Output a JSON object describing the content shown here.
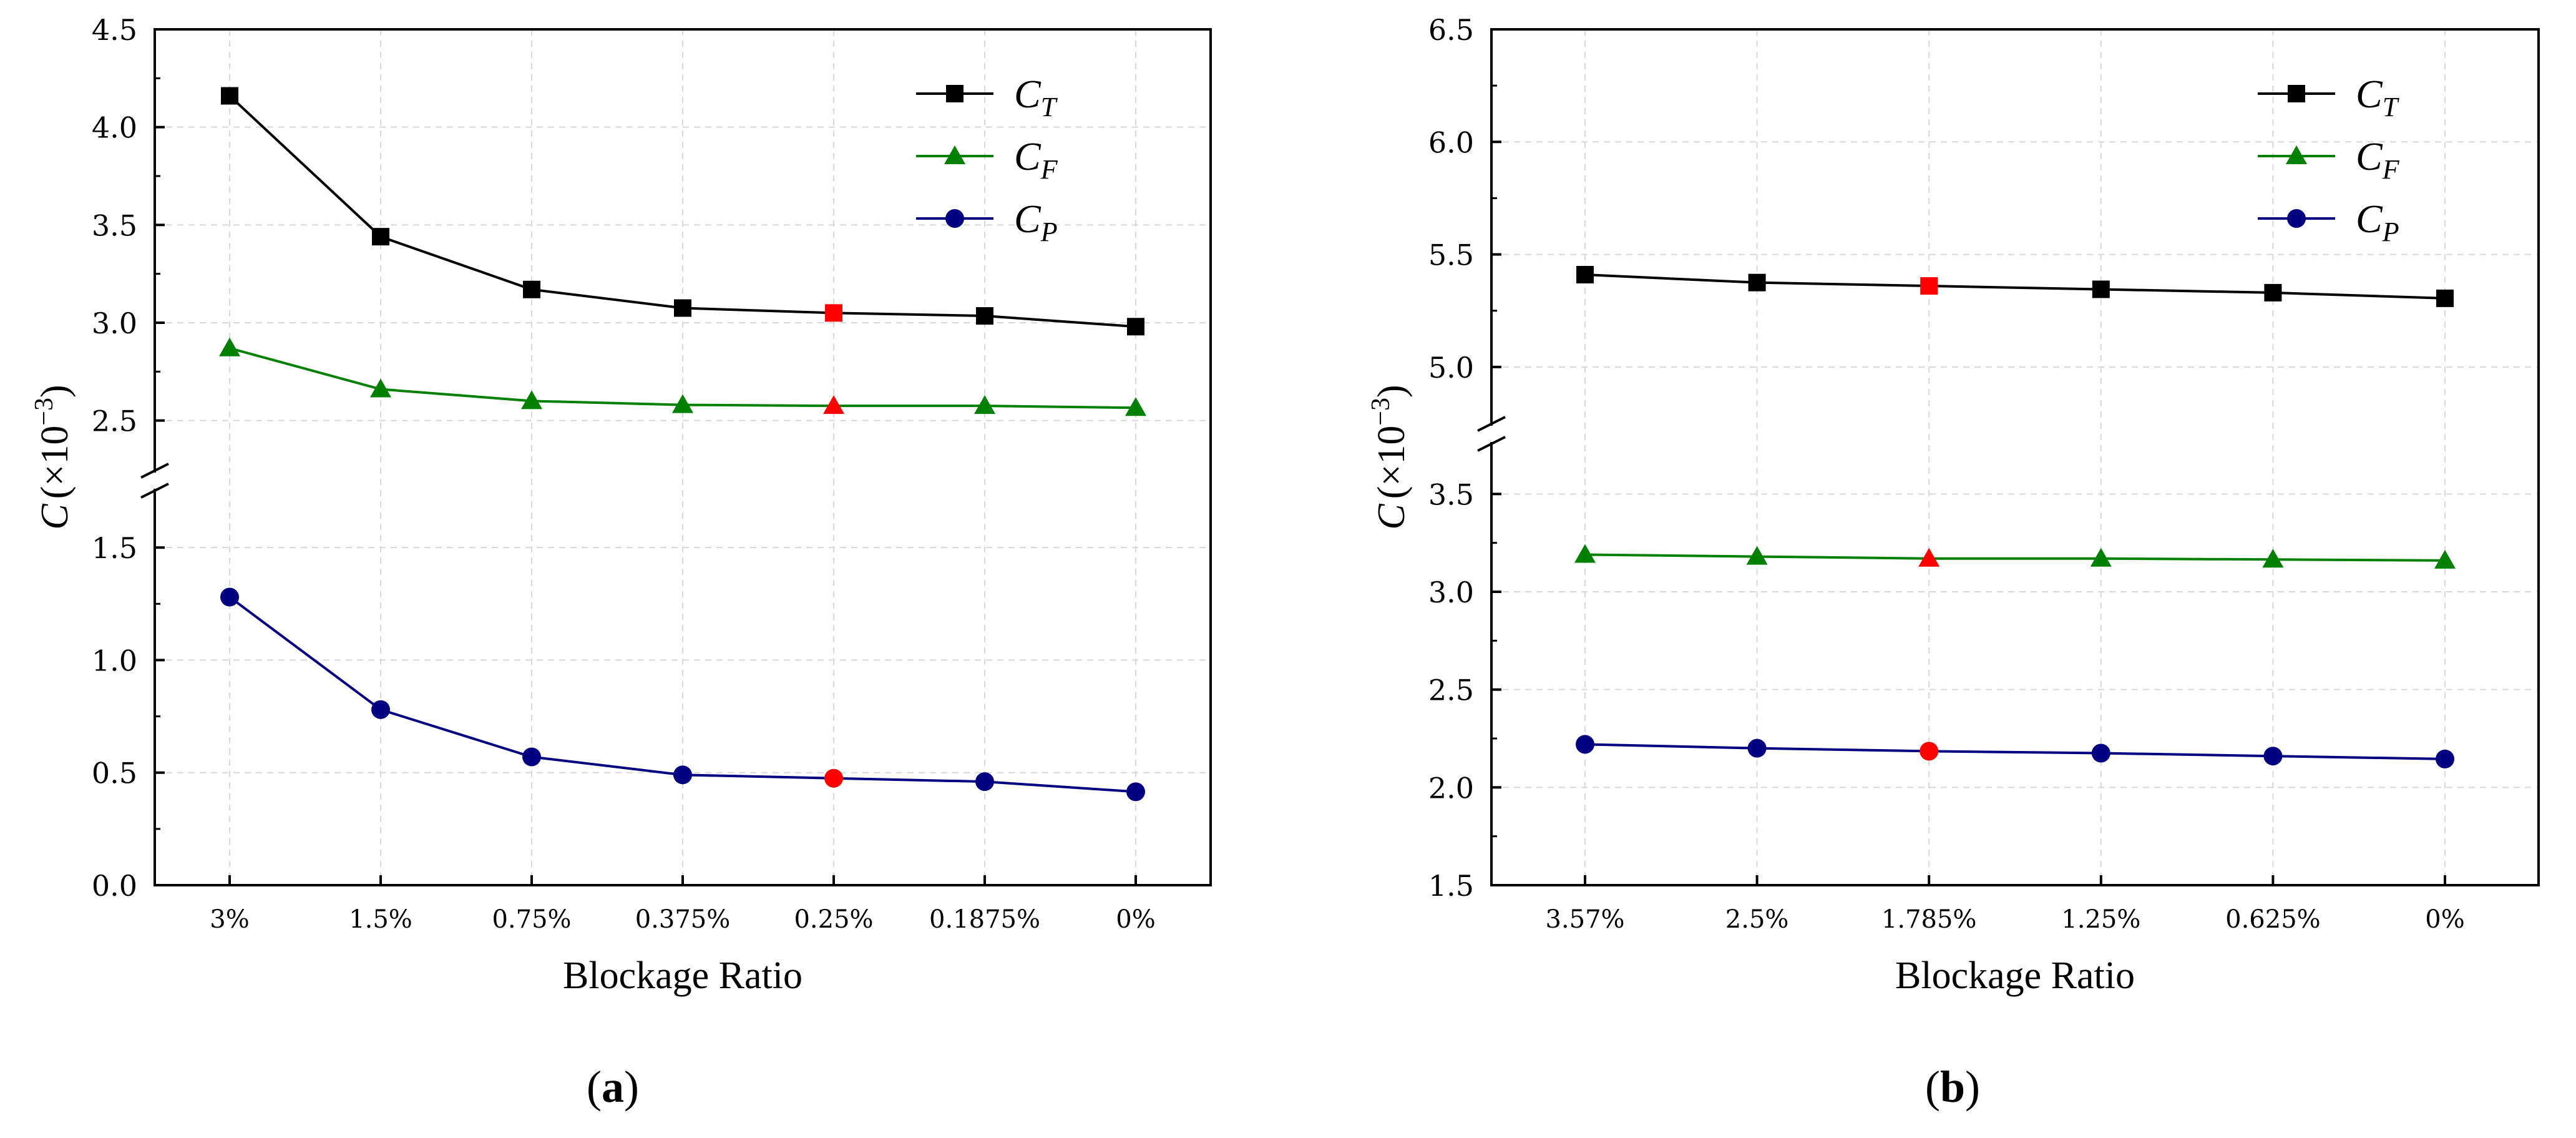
{
  "chart_data": [
    {
      "type": "line",
      "panel_label": "a",
      "xlabel": "Blockage Ratio",
      "ylabel": "C",
      "ylabel_unit": "(×10",
      "ylabel_exp": "−3",
      "ylabel_close": ")",
      "categories": [
        "3%",
        "1.5%",
        "0.75%",
        "0.375%",
        "0.25%",
        "0.1875%",
        "0%"
      ],
      "highlight_index": 4,
      "highlight_color": "#ff0000",
      "axis_break": true,
      "segments": [
        {
          "range": [
            0.0,
            1.75
          ],
          "ticks": [
            0.0,
            0.5,
            1.0,
            1.5
          ],
          "tick_labels": [
            "0.0",
            "0.5",
            "1.0",
            "1.5"
          ]
        },
        {
          "range": [
            2.25,
            4.5
          ],
          "ticks": [
            2.5,
            3.0,
            3.5,
            4.0,
            4.5
          ],
          "tick_labels": [
            "2.5",
            "3.0",
            "3.5",
            "4.0",
            "4.5"
          ]
        }
      ],
      "grid": true,
      "legend_position": "top-right",
      "series": [
        {
          "name": "C",
          "subscript": "T",
          "marker": "square",
          "color": "#000000",
          "values": [
            4.16,
            3.44,
            3.17,
            3.075,
            3.05,
            3.035,
            2.98
          ]
        },
        {
          "name": "C",
          "subscript": "F",
          "marker": "triangle",
          "color": "#008000",
          "values": [
            2.87,
            2.66,
            2.6,
            2.58,
            2.575,
            2.575,
            2.565
          ]
        },
        {
          "name": "C",
          "subscript": "P",
          "marker": "circle",
          "color": "#000080",
          "values": [
            1.28,
            0.78,
            0.57,
            0.49,
            0.475,
            0.46,
            0.415
          ]
        }
      ]
    },
    {
      "type": "line",
      "panel_label": "b",
      "xlabel": "Blockage Ratio",
      "ylabel": "C",
      "ylabel_unit": "(×10",
      "ylabel_exp": "−3",
      "ylabel_close": ")",
      "categories": [
        "3.57%",
        "2.5%",
        "1.785%",
        "1.25%",
        "0.625%",
        "0%"
      ],
      "highlight_index": 2,
      "highlight_color": "#ff0000",
      "axis_break": true,
      "segments": [
        {
          "range": [
            1.5,
            3.75
          ],
          "ticks": [
            1.5,
            2.0,
            2.5,
            3.0,
            3.5
          ],
          "tick_labels": [
            "1.5",
            "2.0",
            "2.5",
            "3.0",
            "3.5"
          ]
        },
        {
          "range": [
            4.75,
            6.5
          ],
          "ticks": [
            5.0,
            5.5,
            6.0,
            6.5
          ],
          "tick_labels": [
            "5.0",
            "5.5",
            "6.0",
            "6.5"
          ]
        }
      ],
      "grid": true,
      "legend_position": "top-right",
      "series": [
        {
          "name": "C",
          "subscript": "T",
          "marker": "square",
          "color": "#000000",
          "values": [
            5.41,
            5.375,
            5.36,
            5.345,
            5.33,
            5.305
          ]
        },
        {
          "name": "C",
          "subscript": "F",
          "marker": "triangle",
          "color": "#008000",
          "values": [
            3.19,
            3.18,
            3.17,
            3.17,
            3.165,
            3.16
          ]
        },
        {
          "name": "C",
          "subscript": "P",
          "marker": "circle",
          "color": "#000080",
          "values": [
            2.22,
            2.2,
            2.185,
            2.175,
            2.16,
            2.145
          ]
        }
      ]
    }
  ]
}
